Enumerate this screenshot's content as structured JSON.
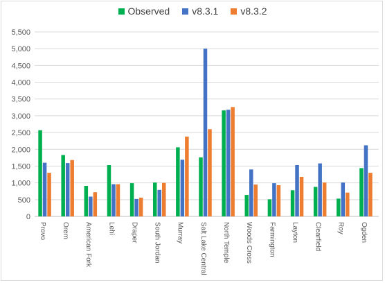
{
  "chart_data": {
    "type": "bar",
    "title": "",
    "xlabel": "",
    "ylabel": "",
    "ylim": [
      0,
      5500
    ],
    "yticks": [
      "0",
      "500",
      "1,000",
      "1,500",
      "2,000",
      "2,500",
      "3,000",
      "3,500",
      "4,000",
      "4,500",
      "5,000",
      "5,500"
    ],
    "ytick_values": [
      0,
      500,
      1000,
      1500,
      2000,
      2500,
      3000,
      3500,
      4000,
      4500,
      5000,
      5500
    ],
    "grid": true,
    "legend_position": "top",
    "categories": [
      "Provo",
      "Orem",
      "American Fork",
      "Lehi",
      "Draper",
      "South Jordan",
      "Murray",
      "Salt Lake Central",
      "North Temple",
      "Woods Cross",
      "Farmington",
      "Layton",
      "Clearfield",
      "Roy",
      "Ogden"
    ],
    "series": [
      {
        "name": "Observed",
        "color": "#00b050",
        "values": [
          2570,
          1830,
          910,
          1530,
          990,
          1010,
          2060,
          1760,
          3160,
          640,
          510,
          780,
          880,
          530,
          1440
        ]
      },
      {
        "name": "v8.3.1",
        "color": "#4472c4",
        "values": [
          1600,
          1590,
          590,
          960,
          520,
          790,
          1690,
          5000,
          3180,
          1400,
          990,
          1530,
          1580,
          1010,
          2120
        ]
      },
      {
        "name": "v8.3.2",
        "color": "#ed7d31",
        "values": [
          1300,
          1680,
          720,
          960,
          560,
          1000,
          2380,
          2600,
          3260,
          950,
          930,
          1180,
          1010,
          710,
          1300
        ]
      }
    ]
  }
}
